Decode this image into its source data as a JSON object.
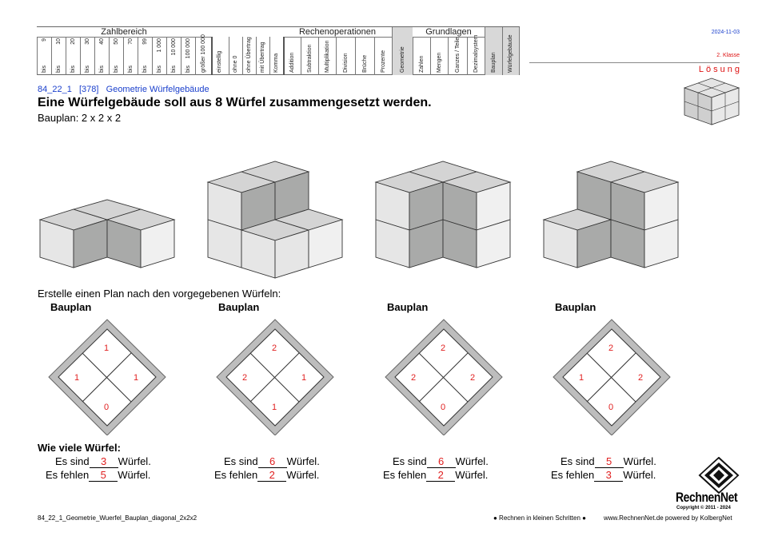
{
  "header": {
    "groups": [
      "Zahlbereich",
      "Rechenoperationen",
      "Grundlagen"
    ],
    "zahlbereich_top": [
      "9",
      "10",
      "20",
      "30",
      "40",
      "50",
      "70",
      "99",
      "1 000",
      "10 000",
      "100 000",
      "größer 100 000"
    ],
    "zahlbereich_bottom": [
      "bis",
      "bis",
      "bis",
      "bis",
      "bis",
      "bis",
      "bis",
      "bis",
      "bis",
      "bis",
      "bis",
      ""
    ],
    "misc_cols": [
      "einstellig",
      "ohne 0",
      "ohne Übertrag",
      "mit Übertrag",
      "Komma"
    ],
    "ops_cols": [
      "Addition",
      "Subtraktion",
      "Multiplikation",
      "Division",
      "Brüche",
      "Prozente",
      "Geometrie"
    ],
    "grund_cols": [
      "Zahlen",
      "Mengen",
      "Ganzes / Teile",
      "Dezimalsystem",
      "Bauplan",
      "Würfelgebäude"
    ],
    "date": "2024-11-03",
    "grade": "2. Klasse",
    "solution": "Lösung"
  },
  "task": {
    "code": "84_22_1",
    "number": "[378]",
    "topic": "Geometrie Würfelgebäude",
    "title": "Eine Würfelgebäude soll aus 8 Würfel zusammengesetzt werden.",
    "plan": "Bauplan:  2  x  2  x  2",
    "instruction": "Erstelle einen Plan nach den vorgegebenen Würfeln:",
    "plan_label": "Bauplan",
    "question": "Wie viele Würfel:",
    "are_label": "Es sind",
    "missing_label": "Es fehlen",
    "unit": "Würfel."
  },
  "plans": [
    {
      "top": "1",
      "left": "1",
      "right": "1",
      "bottom": "0",
      "are": "3",
      "missing": "5"
    },
    {
      "top": "2",
      "left": "2",
      "right": "1",
      "bottom": "1",
      "are": "6",
      "missing": "2"
    },
    {
      "top": "2",
      "left": "2",
      "right": "2",
      "bottom": "0",
      "are": "6",
      "missing": "2"
    },
    {
      "top": "2",
      "left": "1",
      "right": "2",
      "bottom": "0",
      "are": "5",
      "missing": "3"
    }
  ],
  "footer": {
    "file": "84_22_1_Geometrie_Wuerfel_Bauplan_diagonal_2x2x2",
    "slogan": "● Rechnen in kleinen Schritten ●",
    "site": "www.RechnenNet.de powered by KolbergNet",
    "brand": "RechnenNet",
    "copyright": "Copyright © 2011 - 2024"
  }
}
